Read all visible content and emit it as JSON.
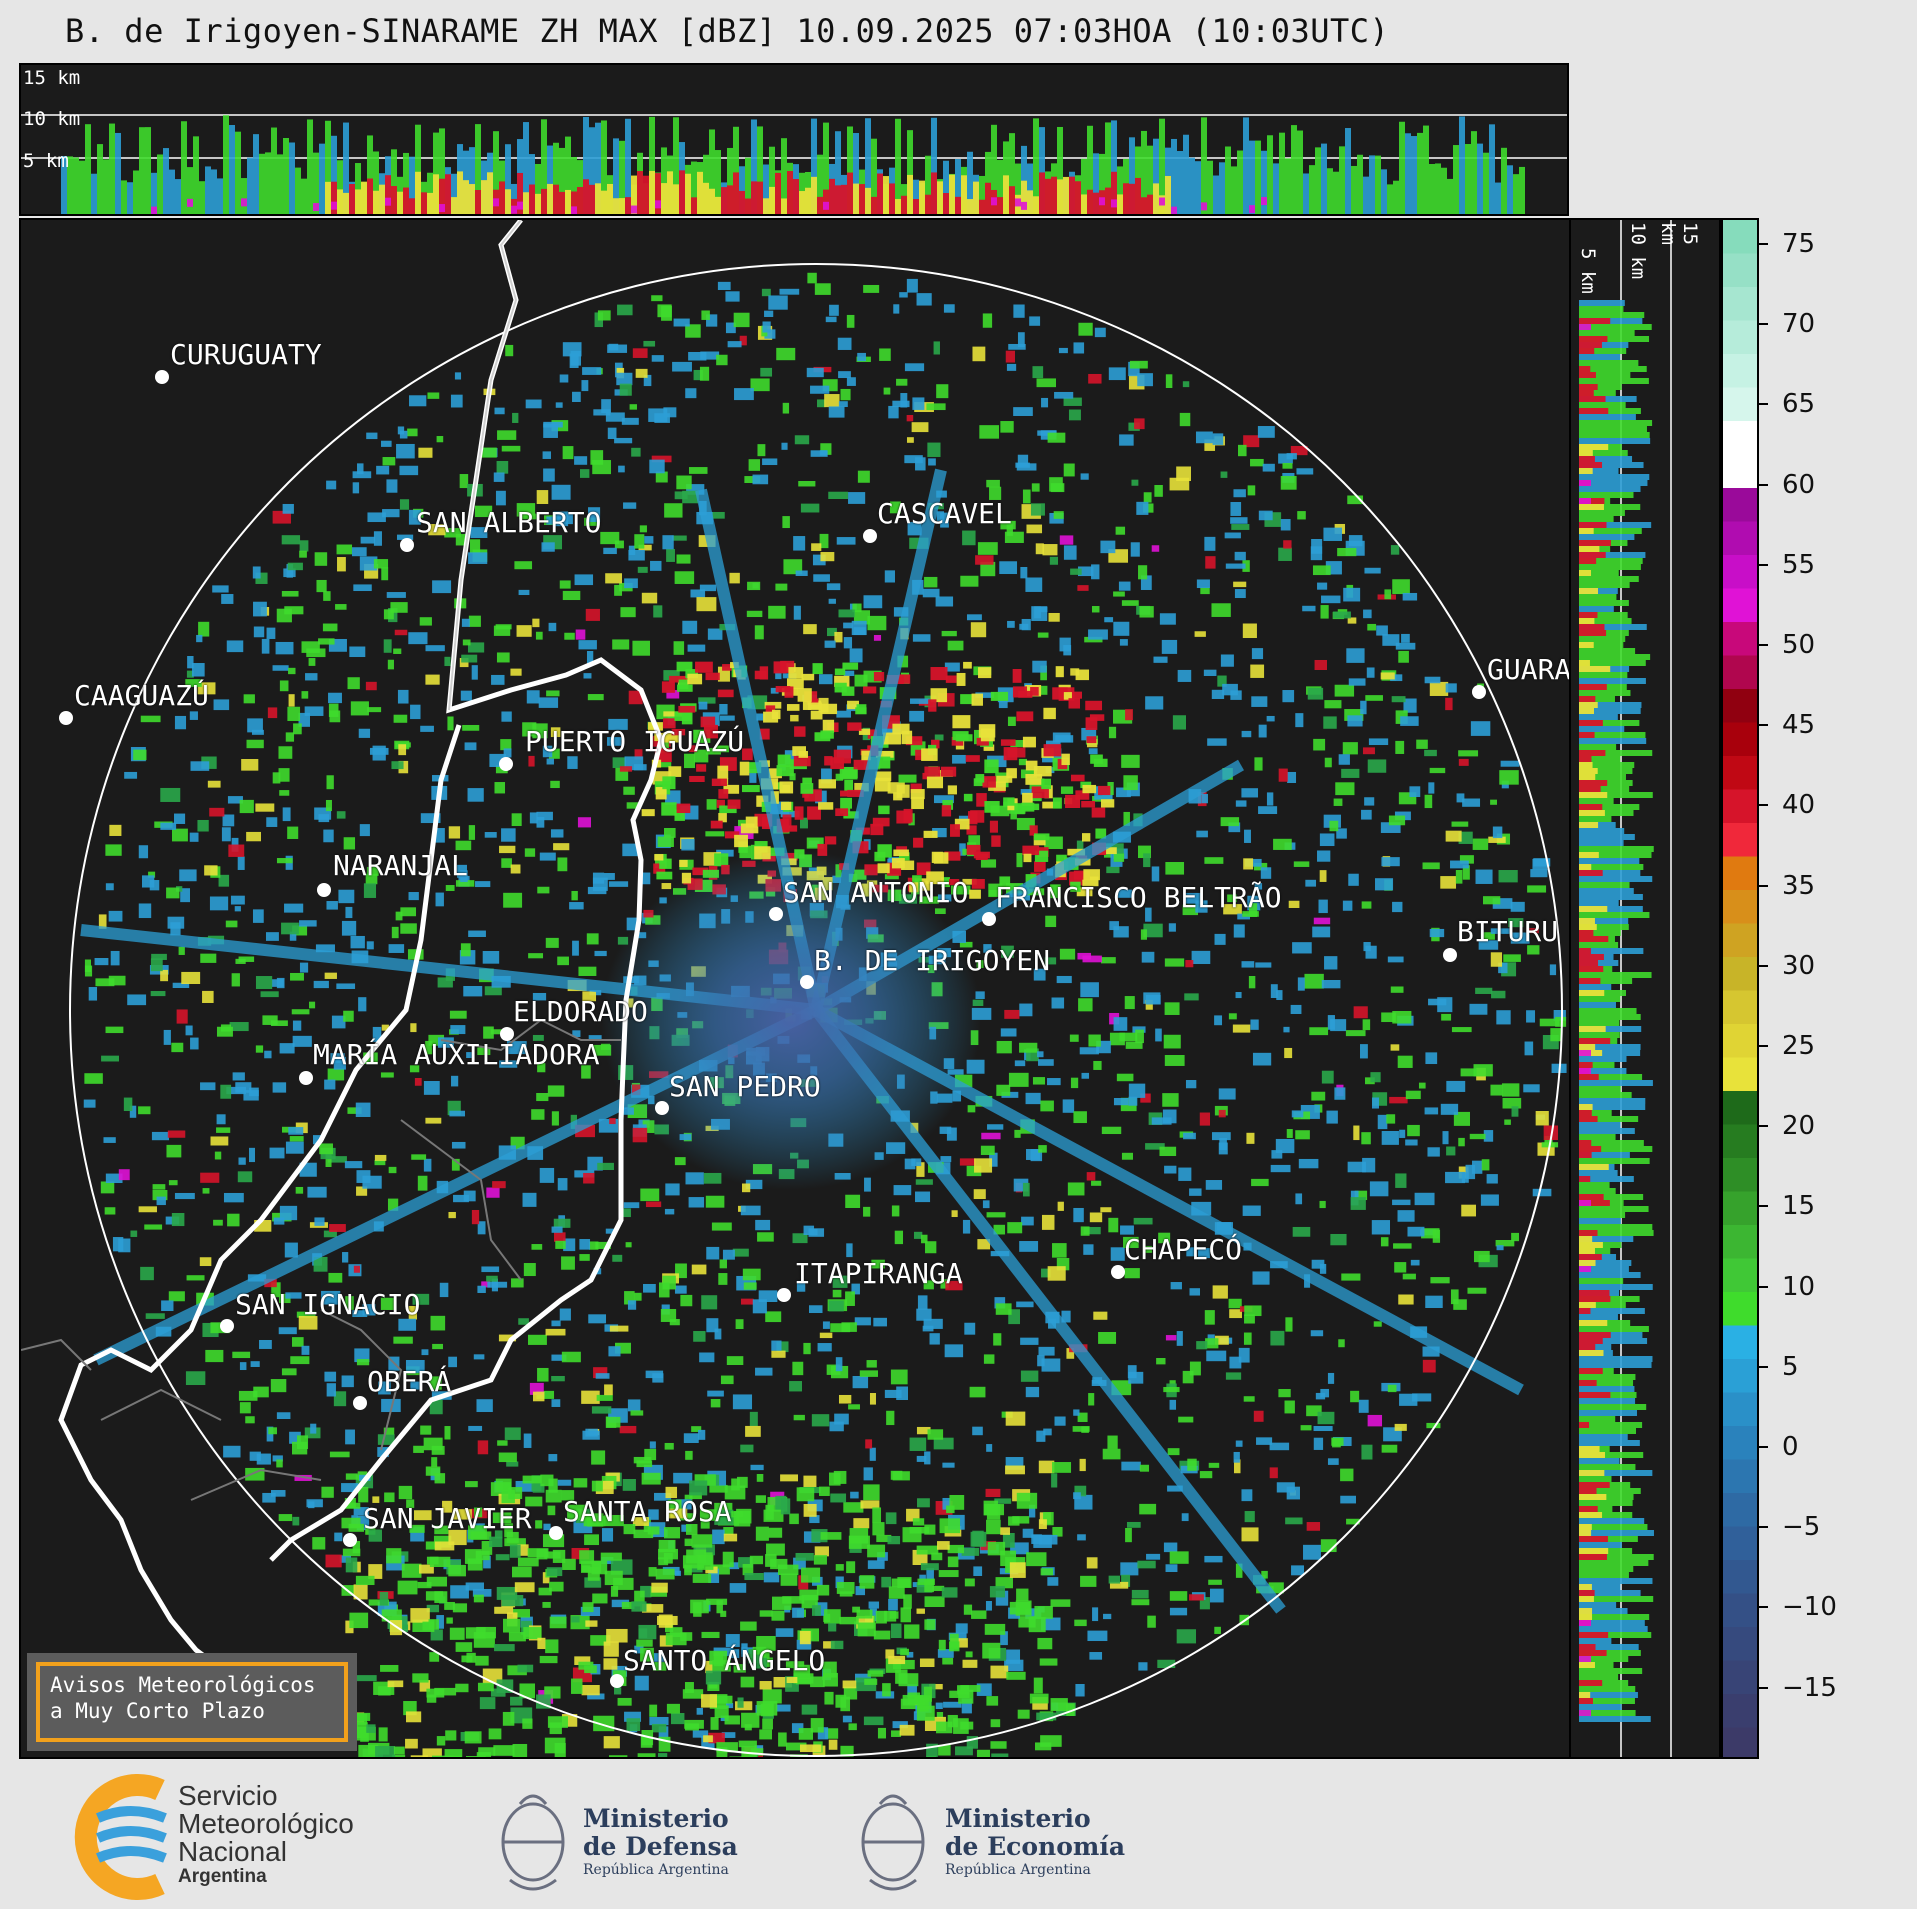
{
  "header": {
    "title": "B. de Irigoyen-SINARAME ZH MAX [dBZ] 10.09.2025 07:03HOA (10:03UTC)"
  },
  "altitude_panels": {
    "top_labels": [
      "15 km",
      "10 km",
      "5 km"
    ],
    "right_labels": [
      "5 km",
      "10 km",
      "15 km"
    ]
  },
  "colorbar": {
    "unit": "dBZ",
    "ticks": [
      "75",
      "70",
      "65",
      "60",
      "55",
      "50",
      "45",
      "40",
      "35",
      "30",
      "25",
      "20",
      "15",
      "10",
      "5",
      "0",
      "−5",
      "−10",
      "−15"
    ],
    "colors": {
      "blue": "#2c9fd6",
      "green": "#3fdc2c",
      "yellow": "#e8e23a",
      "red": "#d6142a",
      "magenta": "#e012d6",
      "white": "#ffffff",
      "teal": "#86dcbc"
    }
  },
  "cities": [
    "CURUGUATY",
    "SAN ALBERTO",
    "CASCAVEL",
    "CAAGUAZÚ",
    "GUARA",
    "PUERTO IGUAZÚ",
    "NARANJAL",
    "SAN ANTONIO",
    "FRANCISCO BELTRÃO",
    "BITURU",
    "B. DE IRIGOYEN",
    "ELDORADO",
    "MARÍA AUXILIADORA",
    "SAN PEDRO",
    "CHAPECÓ",
    "ITAPIRANGA",
    "SAN IGNACIO",
    "OBERÁ",
    "SAN JAVIER",
    "SANTA ROSA",
    "SANTO ÁNGELO"
  ],
  "warnings": {
    "line1": "Avisos Meteorológicos",
    "line2": "a Muy Corto Plazo"
  },
  "footer": {
    "smn": {
      "line1": "Servicio",
      "line2": "Meteorológico",
      "line3": "Nacional",
      "line4": "Argentina"
    },
    "defensa": {
      "line1": "Ministerio",
      "line2": "de Defensa",
      "line3": "República Argentina"
    },
    "economia": {
      "line1": "Ministerio",
      "line2": "de Economía",
      "line3": "República Argentina"
    }
  }
}
